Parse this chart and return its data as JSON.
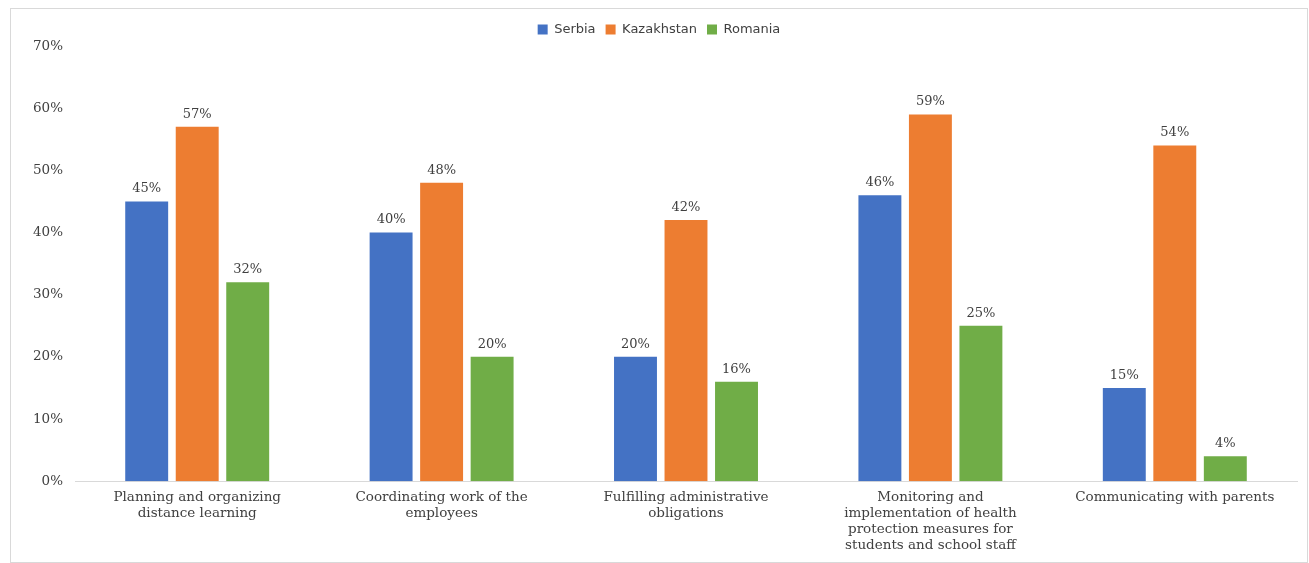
{
  "chart_data": {
    "type": "bar",
    "categories": [
      "Planning and organizing distance learning",
      "Coordinating work of the employees",
      "Fulfilling administrative obligations",
      "Monitoring and implementation of health protection measures for students and school staff",
      "Communicating with parents"
    ],
    "series": [
      {
        "name": "Serbia",
        "color": "#4472c4",
        "values": [
          45,
          40,
          20,
          46,
          15
        ],
        "value_labels": [
          "45%",
          "40%",
          "20%",
          "46%",
          "15%"
        ]
      },
      {
        "name": "Kazakhstan",
        "color": "#ed7d31",
        "values": [
          57,
          48,
          42,
          59,
          54
        ],
        "value_labels": [
          "57%",
          "48%",
          "42%",
          "59%",
          "54%"
        ]
      },
      {
        "name": "Romania",
        "color": "#70ad47",
        "values": [
          32,
          20,
          16,
          25,
          4
        ],
        "value_labels": [
          "32%",
          "20%",
          "16%",
          "25%",
          "4%"
        ]
      }
    ],
    "ylim": [
      0,
      70
    ],
    "yticks": [
      {
        "value": 0,
        "label": "0%"
      },
      {
        "value": 10,
        "label": "10%"
      },
      {
        "value": 20,
        "label": "20%"
      },
      {
        "value": 30,
        "label": "30%"
      },
      {
        "value": 40,
        "label": "40%"
      },
      {
        "value": 50,
        "label": "50%"
      },
      {
        "value": 60,
        "label": "60%"
      },
      {
        "value": 70,
        "label": "70%"
      }
    ],
    "grid": false,
    "legend": "top"
  }
}
